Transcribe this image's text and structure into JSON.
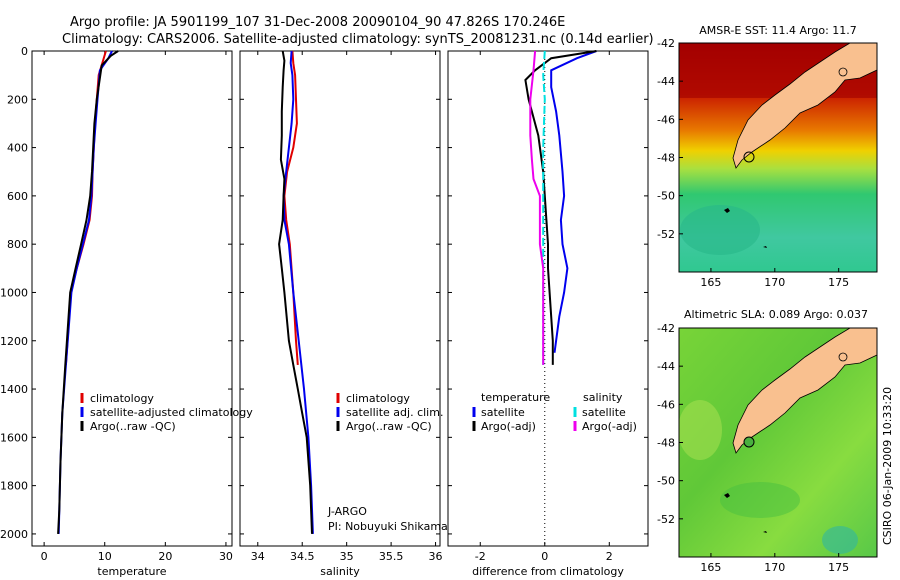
{
  "title": {
    "line1": "Argo profile: JA 5901199_107 31-Dec-2008 20090104_90 47.826S 170.246E",
    "line2": "Climatology: CARS2006. Satellite-adjusted climatology: synTS_20081231.nc (0.14d earlier)"
  },
  "colors": {
    "climatology": "#e00000",
    "satellite": "#0000ee",
    "argo": "#000000",
    "satellite_salinity": "#00e0e0",
    "argo_salinity": "#ee00ee",
    "land": "#f9c08f"
  },
  "side_label": "CSIRO 06-Jan-2009 10:33:20",
  "credits": {
    "line1": "J-ARGO",
    "line2": "PI: Nobuyuki Shikama"
  },
  "chart_data": [
    {
      "type": "line",
      "name": "temperature-profile",
      "xlabel": "temperature",
      "ylabel": "",
      "xlim": [
        -2,
        31
      ],
      "ylim": [
        2050,
        0
      ],
      "xticks": [
        0,
        10,
        20,
        30
      ],
      "yticks": [
        0,
        200,
        400,
        600,
        800,
        1000,
        1200,
        1400,
        1600,
        1800,
        2000
      ],
      "legend": [
        "climatology",
        "satellite-adjusted climatology",
        "Argo(..raw -QC)"
      ],
      "series": [
        {
          "name": "climatology",
          "color": "#e00000",
          "x": [
            10.2,
            9.6,
            9.0,
            8.7,
            8.4,
            8.2,
            8.0,
            7.9,
            7.5,
            6.5,
            5.4,
            4.4,
            3.6
          ],
          "y": [
            0,
            50,
            100,
            200,
            300,
            400,
            500,
            600,
            700,
            800,
            900,
            1000,
            1300
          ]
        },
        {
          "name": "satellite-adjusted climatology",
          "color": "#0000ee",
          "x": [
            11.2,
            10.6,
            9.2,
            8.8,
            8.5,
            8.2,
            8.0,
            7.8,
            7.4,
            6.4,
            5.4,
            4.5,
            3.6,
            3.0,
            2.7,
            2.5,
            2.4
          ],
          "y": [
            0,
            30,
            80,
            200,
            300,
            400,
            500,
            600,
            700,
            800,
            900,
            1000,
            1300,
            1500,
            1700,
            1900,
            2000
          ]
        },
        {
          "name": "Argo(..raw -QC)",
          "color": "#000000",
          "x": [
            12.2,
            11.0,
            9.5,
            8.7,
            8.3,
            8.1,
            7.9,
            7.6,
            7.0,
            6.1,
            5.2,
            4.3,
            3.5,
            3.0,
            2.7,
            2.5,
            2.3
          ],
          "y": [
            0,
            20,
            60,
            200,
            300,
            400,
            500,
            600,
            700,
            800,
            900,
            1000,
            1300,
            1500,
            1700,
            1900,
            2000
          ]
        }
      ]
    },
    {
      "type": "line",
      "name": "salinity-profile",
      "xlabel": "salinity",
      "xlim": [
        33.8,
        36.05
      ],
      "ylim": [
        2050,
        0
      ],
      "xticks": [
        34,
        34.5,
        35,
        35.5,
        36
      ],
      "legend": [
        "climatology",
        "satellite adj. clim.",
        "Argo(..raw -QC)"
      ],
      "series": [
        {
          "name": "climatology",
          "color": "#e00000",
          "x": [
            34.39,
            34.4,
            34.42,
            34.43,
            34.44,
            34.4,
            34.33,
            34.3,
            34.32,
            34.36,
            34.4,
            34.43,
            34.45
          ],
          "y": [
            0,
            50,
            100,
            200,
            300,
            400,
            500,
            600,
            700,
            800,
            1000,
            1200,
            1300
          ]
        },
        {
          "name": "satellite adj. clim.",
          "color": "#0000ee",
          "x": [
            34.38,
            34.37,
            34.39,
            34.4,
            34.38,
            34.35,
            34.32,
            34.29,
            34.3,
            34.35,
            34.4,
            34.46,
            34.52,
            34.57,
            34.6,
            34.62
          ],
          "y": [
            0,
            50,
            100,
            200,
            300,
            400,
            500,
            600,
            700,
            800,
            1000,
            1200,
            1400,
            1600,
            1800,
            2000
          ]
        },
        {
          "name": "Argo(..raw -QC)",
          "color": "#000000",
          "x": [
            34.28,
            34.3,
            34.29,
            34.28,
            34.27,
            34.27,
            34.26,
            34.3,
            34.29,
            34.28,
            34.24,
            34.27,
            34.3,
            34.35,
            34.4,
            34.45,
            34.5,
            34.55,
            34.59,
            34.61
          ],
          "y": [
            0,
            40,
            80,
            150,
            250,
            350,
            450,
            530,
            600,
            700,
            800,
            900,
            1000,
            1200,
            1300,
            1400,
            1500,
            1600,
            1800,
            2000
          ]
        }
      ]
    },
    {
      "type": "line",
      "name": "difference-profile",
      "xlabel": "difference from climatology",
      "xlim": [
        -3,
        3.2
      ],
      "ylim": [
        2050,
        0
      ],
      "xticks": [
        -2,
        0,
        2
      ],
      "legend_columns": [
        {
          "heading": "temperature",
          "entries": [
            "satellite",
            "Argo(-adj)"
          ]
        },
        {
          "heading": "salinity",
          "entries": [
            "satellite",
            "Argo(-adj)"
          ]
        }
      ],
      "series": [
        {
          "name": "temperature satellite",
          "color": "#0000ee",
          "x": [
            1.6,
            1.0,
            0.2,
            0.2,
            0.35,
            0.45,
            0.55,
            0.6,
            0.5,
            0.55,
            0.7,
            0.6,
            0.45,
            0.35,
            0.3
          ],
          "y": [
            0,
            30,
            80,
            150,
            250,
            350,
            500,
            600,
            700,
            800,
            900,
            1000,
            1100,
            1200,
            1250
          ]
        },
        {
          "name": "temperature Argo(-adj)",
          "color": "#000000",
          "x": [
            1.6,
            0.2,
            -0.3,
            -0.6,
            -0.5,
            -0.2,
            -0.05,
            0.0,
            0.05,
            0.1,
            0.1,
            0.15,
            0.2,
            0.25,
            0.25
          ],
          "y": [
            0,
            30,
            80,
            120,
            200,
            350,
            500,
            600,
            700,
            800,
            900,
            1000,
            1100,
            1200,
            1300
          ]
        },
        {
          "name": "salinity satellite",
          "color": "#00e0e0",
          "x": [
            0.0,
            -0.05,
            0.0,
            -0.05,
            -0.05,
            -0.05,
            -0.05,
            -0.05,
            -0.05,
            -0.05,
            -0.05,
            -0.05
          ],
          "y": [
            0,
            100,
            200,
            400,
            500,
            600,
            800,
            1000,
            1100,
            1200,
            1250,
            1300
          ]
        },
        {
          "name": "salinity Argo(-adj)",
          "color": "#ee00ee",
          "x": [
            -0.3,
            -0.35,
            -0.45,
            -0.45,
            -0.4,
            -0.35,
            -0.15,
            -0.15,
            -0.05,
            -0.05
          ],
          "y": [
            0,
            80,
            200,
            350,
            450,
            530,
            600,
            800,
            900,
            1300
          ]
        }
      ]
    },
    {
      "type": "heatmap",
      "name": "sst-map",
      "title": "AMSR-E SST: 11.4 Argo: 11.7",
      "xlim": [
        162.5,
        178
      ],
      "ylim": [
        -54,
        -42
      ],
      "xticks": [
        165,
        170,
        175
      ],
      "yticks": [
        -42,
        -44,
        -46,
        -48,
        -50,
        -52
      ],
      "marker": {
        "lon": 170.246,
        "lat": -47.826
      }
    },
    {
      "type": "heatmap",
      "name": "sla-map",
      "title": "Altimetric SLA: 0.089 Argo: 0.037",
      "xlim": [
        162.5,
        178
      ],
      "ylim": [
        -54,
        -42
      ],
      "xticks": [
        165,
        170,
        175
      ],
      "yticks": [
        -42,
        -44,
        -46,
        -48,
        -50,
        -52
      ],
      "marker": {
        "lon": 170.246,
        "lat": -47.826
      }
    }
  ]
}
